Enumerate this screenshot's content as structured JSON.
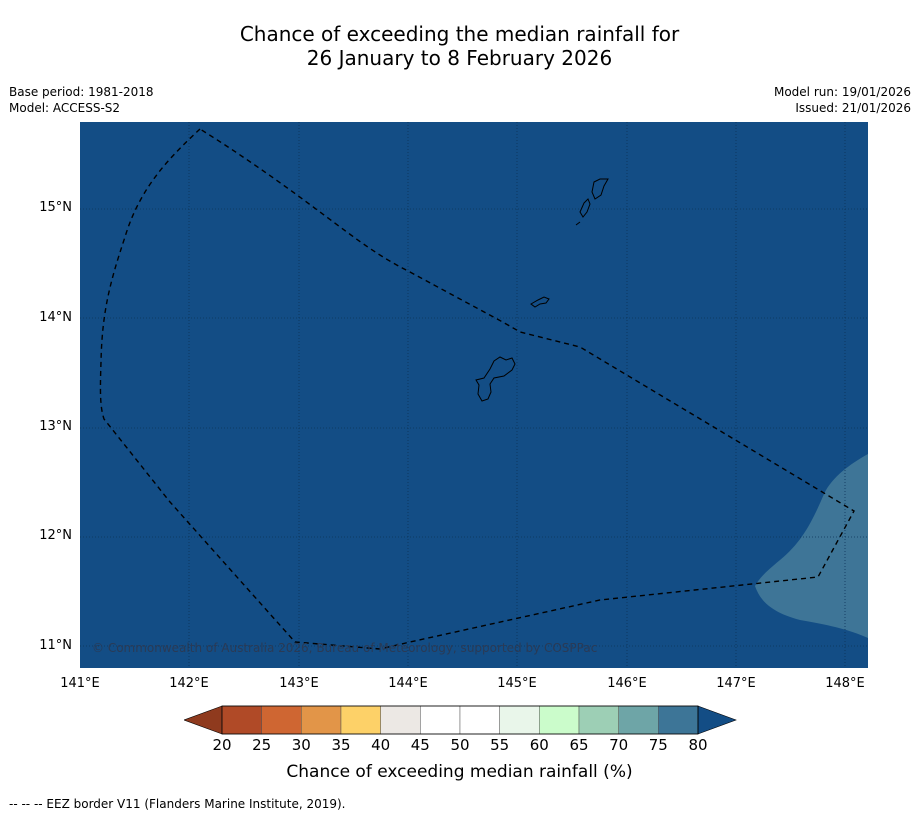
{
  "title_line1": "Chance of exceeding the median rainfall for",
  "title_line2": "26 January to 8 February 2026",
  "meta_left": {
    "base_period": "Base period: 1981-2018",
    "model": "Model: ACCESS-S2"
  },
  "meta_right": {
    "model_run": "Model run: 19/01/2026",
    "issued": "Issued: 21/01/2026"
  },
  "map": {
    "lat_labels": [
      "15°N",
      "14°N",
      "13°N",
      "12°N",
      "11°N"
    ],
    "lon_labels": [
      "141°E",
      "142°E",
      "143°E",
      "144°E",
      "145°E",
      "146°E",
      "147°E",
      "148°E"
    ],
    "copyright": "© Commonwealth of Australia 2026, Bureau of Meteorology, supported by COSPPac",
    "features": {
      "background_category": "75-80 and above",
      "southeast_patch_category": "70-75",
      "eez_border": "dashed",
      "islands": [
        "Guam",
        "Rota",
        "Tinian",
        "Saipan"
      ]
    }
  },
  "colorbar": {
    "ticks": [
      "20",
      "25",
      "30",
      "35",
      "40",
      "45",
      "50",
      "55",
      "60",
      "65",
      "70",
      "75",
      "80"
    ],
    "below_color": "#8f3a1e",
    "above_color": "#134d85",
    "colors": [
      "#b04a27",
      "#cf6632",
      "#e29548",
      "#fdd168",
      "#ece8e4",
      "#ffffff",
      "#ffffff",
      "#e9f6ea",
      "#cbfccb",
      "#9dcfb5",
      "#6ea5a7",
      "#3d7597"
    ],
    "label": "Chance of exceeding median rainfall (%)"
  },
  "footnote": "--  --  -- EEZ border V11 (Flanders Marine Institute, 2019)."
}
